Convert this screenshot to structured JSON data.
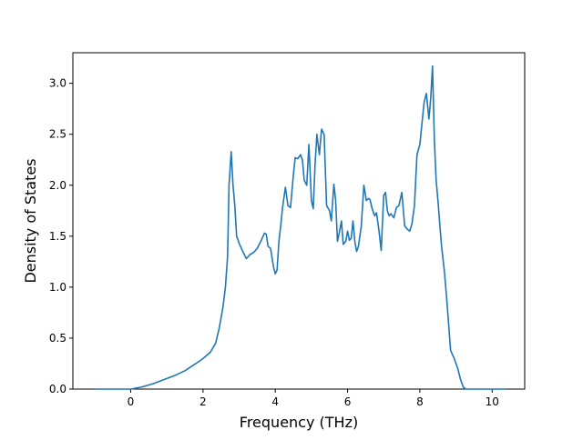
{
  "chart_data": {
    "type": "line",
    "title": "",
    "xlabel": "Frequency (THz)",
    "ylabel": "Density of States",
    "xlim": [
      -1.6,
      10.9
    ],
    "ylim": [
      0.0,
      3.3
    ],
    "xticks": [
      0,
      2,
      4,
      6,
      8,
      10
    ],
    "xtick_labels": [
      "0",
      "2",
      "4",
      "6",
      "8",
      "10"
    ],
    "yticks": [
      0.0,
      0.5,
      1.0,
      1.5,
      2.0,
      2.5,
      3.0
    ],
    "ytick_labels": [
      "0.0",
      "0.5",
      "1.0",
      "1.5",
      "2.0",
      "2.5",
      "3.0"
    ],
    "grid": false,
    "series": [
      {
        "color": "#1f77b4",
        "x": [
          -0.95,
          0.0,
          0.3,
          0.6,
          0.9,
          1.2,
          1.5,
          1.8,
          2.0,
          2.2,
          2.35,
          2.45,
          2.55,
          2.62,
          2.68,
          2.72,
          2.78,
          2.83,
          2.88,
          2.93,
          3.0,
          3.1,
          3.2,
          3.3,
          3.4,
          3.5,
          3.6,
          3.7,
          3.75,
          3.8,
          3.87,
          3.95,
          4.0,
          4.05,
          4.1,
          4.15,
          4.2,
          4.28,
          4.35,
          4.42,
          4.5,
          4.55,
          4.62,
          4.7,
          4.75,
          4.8,
          4.87,
          4.93,
          5.0,
          5.05,
          5.1,
          5.15,
          5.22,
          5.28,
          5.35,
          5.42,
          5.5,
          5.55,
          5.62,
          5.67,
          5.72,
          5.78,
          5.83,
          5.88,
          5.95,
          6.0,
          6.05,
          6.1,
          6.15,
          6.2,
          6.25,
          6.3,
          6.38,
          6.45,
          6.52,
          6.58,
          6.62,
          6.68,
          6.75,
          6.8,
          6.87,
          6.93,
          7.0,
          7.05,
          7.1,
          7.15,
          7.2,
          7.28,
          7.35,
          7.42,
          7.5,
          7.58,
          7.65,
          7.72,
          7.78,
          7.85,
          7.92,
          8.0,
          8.05,
          8.12,
          8.18,
          8.25,
          8.3,
          8.35,
          8.4,
          8.45,
          8.5,
          8.55,
          8.6,
          8.68,
          8.75,
          8.85,
          8.95,
          9.05,
          9.12,
          9.2,
          9.27,
          9.3,
          9.35,
          9.4,
          10.35
        ],
        "y": [
          0.0,
          0.0,
          0.02,
          0.05,
          0.09,
          0.13,
          0.18,
          0.25,
          0.3,
          0.36,
          0.45,
          0.6,
          0.8,
          1.0,
          1.3,
          2.0,
          2.33,
          2.0,
          1.8,
          1.5,
          1.43,
          1.35,
          1.28,
          1.32,
          1.34,
          1.38,
          1.45,
          1.53,
          1.52,
          1.4,
          1.38,
          1.2,
          1.13,
          1.17,
          1.45,
          1.6,
          1.78,
          1.98,
          1.8,
          1.78,
          2.1,
          2.27,
          2.26,
          2.3,
          2.25,
          2.05,
          2.0,
          2.4,
          1.85,
          1.77,
          2.2,
          2.5,
          2.3,
          2.55,
          2.5,
          1.8,
          1.75,
          1.65,
          2.01,
          1.85,
          1.45,
          1.55,
          1.65,
          1.42,
          1.45,
          1.55,
          1.46,
          1.48,
          1.65,
          1.45,
          1.35,
          1.4,
          1.6,
          2.0,
          1.85,
          1.87,
          1.86,
          1.77,
          1.7,
          1.73,
          1.55,
          1.36,
          1.9,
          1.93,
          1.75,
          1.7,
          1.72,
          1.68,
          1.78,
          1.8,
          1.93,
          1.6,
          1.57,
          1.55,
          1.62,
          1.8,
          2.3,
          2.4,
          2.58,
          2.82,
          2.9,
          2.65,
          2.85,
          3.17,
          2.45,
          2.05,
          1.85,
          1.62,
          1.4,
          1.15,
          0.85,
          0.38,
          0.3,
          0.2,
          0.1,
          0.02,
          0.0,
          0.0,
          0.0,
          0.0,
          0.0
        ]
      }
    ]
  }
}
